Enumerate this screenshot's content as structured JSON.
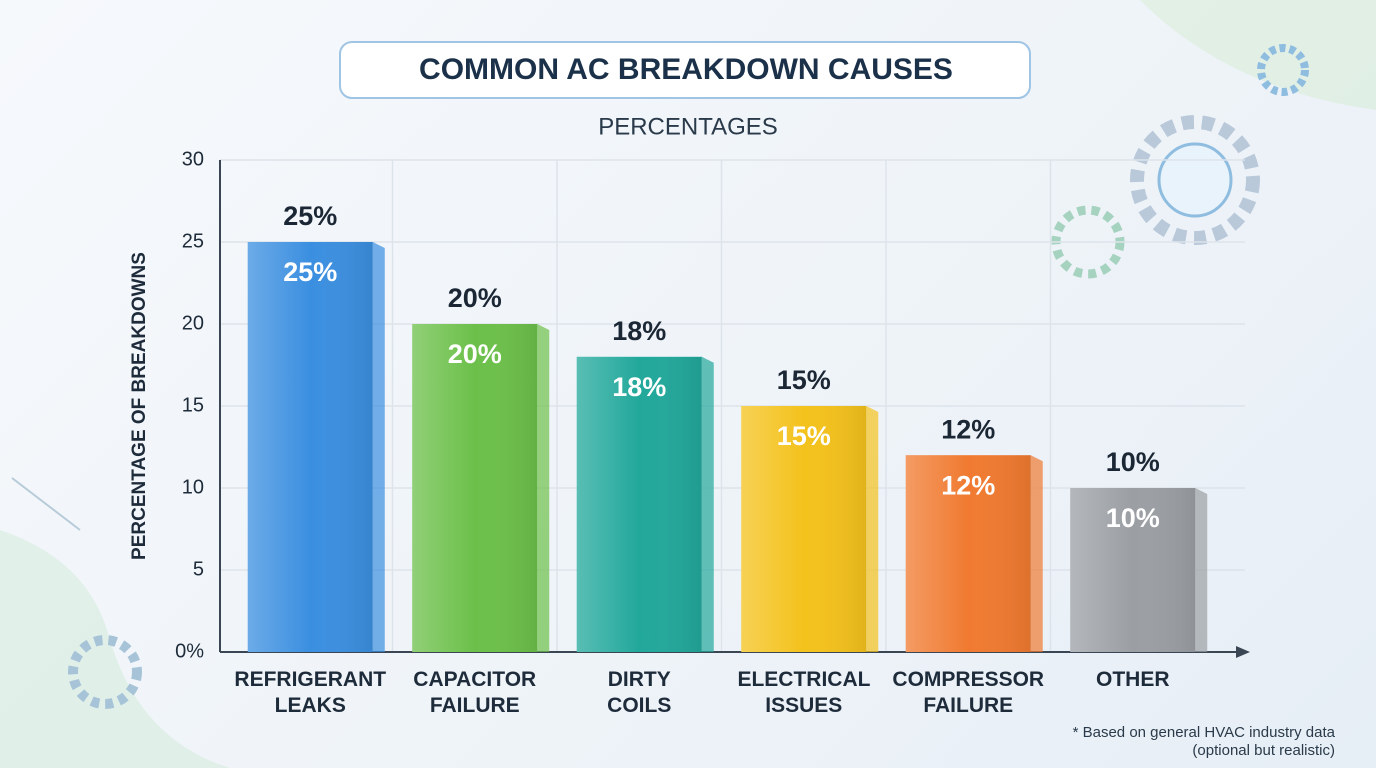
{
  "chart_data": {
    "type": "bar",
    "title": "COMMON AC BREAKDOWN CAUSES",
    "subtitle": "PERCENTAGES",
    "y_label": "PERCENTAGE OF BREAKDOWNS",
    "categories": [
      "REFRIGERANT LEAKS",
      "CAPACITOR FAILURE",
      "DIRTY COILS",
      "ELECTRICAL ISSUES",
      "COMPRESSOR FAILURE",
      "OTHER"
    ],
    "values": [
      25,
      20,
      18,
      15,
      12,
      10
    ],
    "value_labels": [
      "25%",
      "20%",
      "18%",
      "15%",
      "12%",
      "10%"
    ],
    "colors": [
      "#3b8fe0",
      "#6cc04a",
      "#22a89b",
      "#f4c21c",
      "#f07a30",
      "#9b9fa4"
    ],
    "ylim": [
      0,
      30
    ],
    "yticks": [
      {
        "value": 0,
        "label": "0%"
      },
      5,
      10,
      15,
      20,
      25,
      30
    ],
    "grid": true,
    "footnote": [
      "* Based on general HVAC industry data",
      "(optional but realistic)"
    ]
  }
}
